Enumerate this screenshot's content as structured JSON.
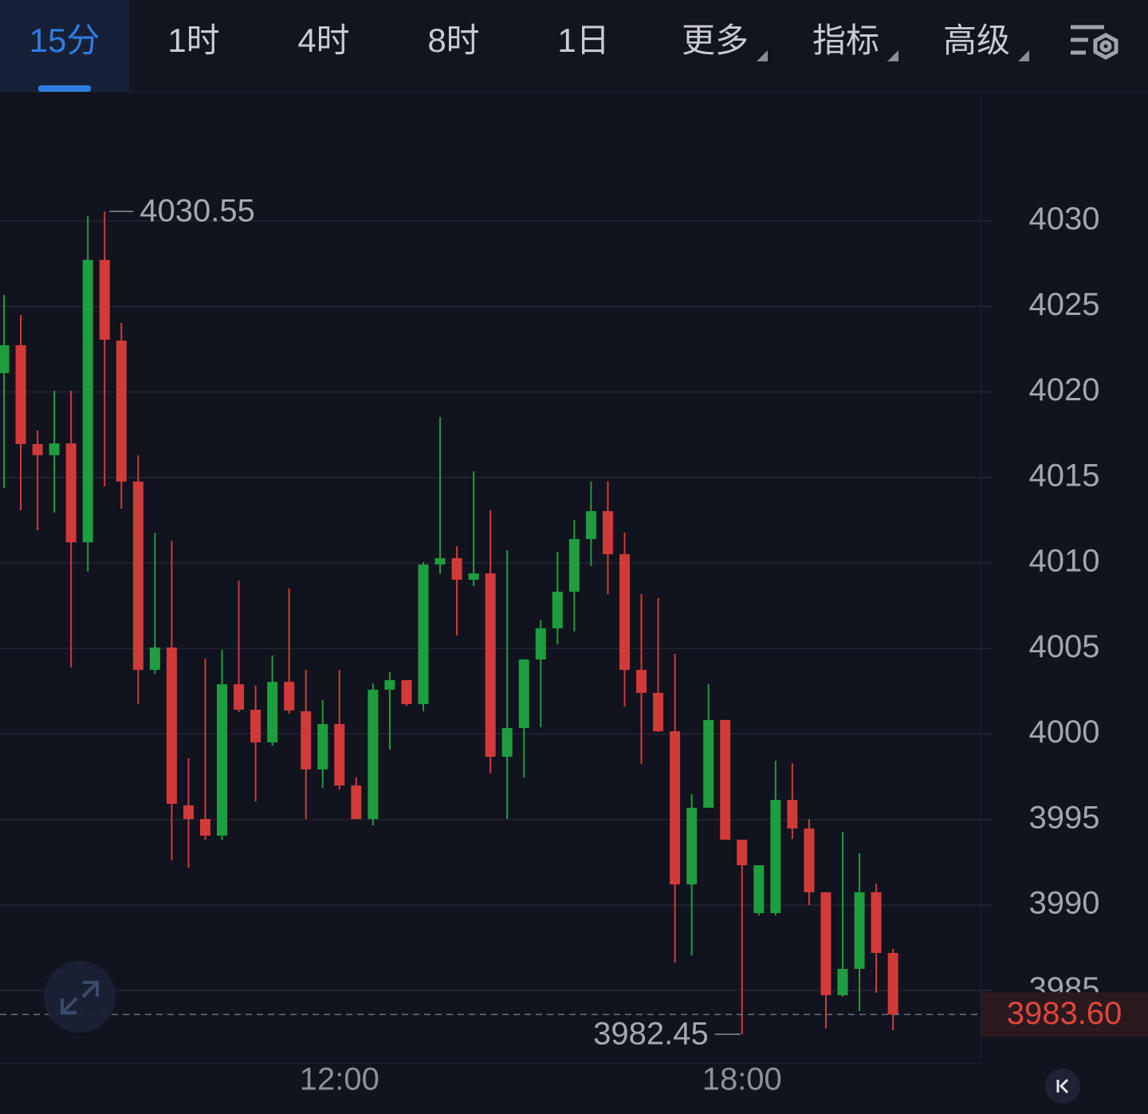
{
  "toolbar": {
    "tabs": [
      {
        "label": "15分",
        "dropdown": false
      },
      {
        "label": "1时",
        "dropdown": false
      },
      {
        "label": "4时",
        "dropdown": false
      },
      {
        "label": "8时",
        "dropdown": false
      },
      {
        "label": "1日",
        "dropdown": false
      },
      {
        "label": "更多",
        "dropdown": true
      },
      {
        "label": "指标",
        "dropdown": true
      },
      {
        "label": "高级",
        "dropdown": true
      }
    ],
    "active": 0
  },
  "chart_data": {
    "type": "candlestick",
    "categories": [
      null,
      null,
      null,
      null,
      null,
      null,
      null,
      null,
      null,
      null,
      null,
      null,
      null,
      null,
      null,
      null,
      null,
      null,
      null,
      null,
      "12:00",
      null,
      null,
      null,
      null,
      null,
      null,
      null,
      null,
      null,
      null,
      null,
      null,
      null,
      null,
      null,
      null,
      null,
      null,
      null,
      null,
      null,
      null,
      null,
      "18:00",
      null,
      null,
      null,
      null,
      null,
      null,
      null,
      null,
      null
    ],
    "open": [
      4021.1,
      4022.73,
      4016.95,
      4016.3,
      4016.99,
      4011.21,
      4027.72,
      4023.0,
      4014.76,
      4003.75,
      4005.06,
      3995.83,
      3995.03,
      3994.06,
      4002.91,
      4001.42,
      3999.51,
      4003.05,
      4001.33,
      3997.93,
      4000.58,
      3996.99,
      3995.03,
      4002.59,
      4003.15,
      4001.75,
      4009.91,
      4010.28,
      4009.02,
      4009.39,
      3998.67,
      4000.35,
      4004.36,
      4006.18,
      4008.32,
      4011.4,
      4013.03,
      4010.51,
      4003.75,
      4002.4,
      4000.16,
      3991.21,
      3995.69,
      4000.82,
      3993.82,
      3989.53,
      3989.53,
      3996.15,
      3994.48,
      3990.75,
      3984.73,
      3986.27,
      3990.75,
      3987.2
    ],
    "high": [
      4025.66,
      4024.5,
      4017.74,
      4020.07,
      4020.07,
      4030.28,
      4030.55,
      4024.03,
      4016.3,
      4011.77,
      4011.3,
      3998.58,
      4004.41,
      4004.92,
      4008.97,
      4002.82,
      4004.59,
      4008.51,
      4003.75,
      4001.98,
      4003.75,
      3997.46,
      4002.96,
      4003.61,
      4003.15,
      4010.05,
      4018.53,
      4010.98,
      4015.36,
      4013.08,
      4010.75,
      4004.36,
      4006.64,
      4010.65,
      4012.52,
      4014.76,
      4014.76,
      4011.77,
      4008.18,
      4007.95,
      4004.69,
      3996.48,
      4002.91,
      4000.82,
      3993.82,
      3992.33,
      3998.44,
      3998.3,
      3995.03,
      3990.75,
      3994.29,
      3993.03,
      3991.26,
      3987.44
    ],
    "low": [
      4014.38,
      4013.08,
      4011.91,
      4012.94,
      4003.89,
      4009.49,
      4014.48,
      4013.17,
      4001.75,
      4003.52,
      3992.61,
      3992.19,
      3993.82,
      3993.82,
      4001.28,
      3996.06,
      3999.32,
      4001.19,
      3995.03,
      3996.85,
      3996.76,
      3995.03,
      3994.66,
      3999.09,
      4001.65,
      4001.33,
      4009.35,
      4005.76,
      4008.65,
      3997.69,
      3995.03,
      3997.46,
      4000.4,
      4005.24,
      4006.0,
      4009.81,
      4008.18,
      4001.61,
      3998.25,
      4000.12,
      3986.64,
      3987.06,
      3995.69,
      3993.82,
      3982.45,
      3989.39,
      3989.39,
      3993.87,
      3990.0,
      3982.78,
      3984.64,
      3983.8,
      3984.87,
      3982.68
    ],
    "close": [
      4022.73,
      4016.95,
      4016.3,
      4016.99,
      4011.21,
      4027.72,
      4023.05,
      4014.76,
      4003.75,
      4005.06,
      3995.92,
      3995.03,
      3994.06,
      4002.91,
      4001.42,
      3999.51,
      4003.05,
      4001.38,
      3997.93,
      4000.58,
      3996.99,
      3995.03,
      4002.59,
      4003.15,
      4001.75,
      4009.91,
      4010.28,
      4009.02,
      4009.39,
      3998.67,
      4000.35,
      4004.36,
      4006.18,
      4008.32,
      4011.4,
      4013.03,
      4010.51,
      4003.75,
      4002.4,
      4000.16,
      3991.21,
      3995.69,
      4000.82,
      3993.82,
      3992.33,
      3992.33,
      3996.15,
      3994.48,
      3990.75,
      3984.73,
      3986.27,
      3990.75,
      3987.2,
      3983.6
    ],
    "up_color": "#1e9e3e",
    "down_color": "#d23a3a",
    "ylim": [
      3980.77,
      4037.55
    ],
    "yticks": [
      3985,
      3990,
      3995,
      4000,
      4005,
      4010,
      4015,
      4020,
      4025,
      4030
    ],
    "grid": true,
    "high_label": 4030.55,
    "low_label": 3982.45,
    "last_price": {
      "value": 3983.6,
      "label": "3983.60"
    }
  }
}
